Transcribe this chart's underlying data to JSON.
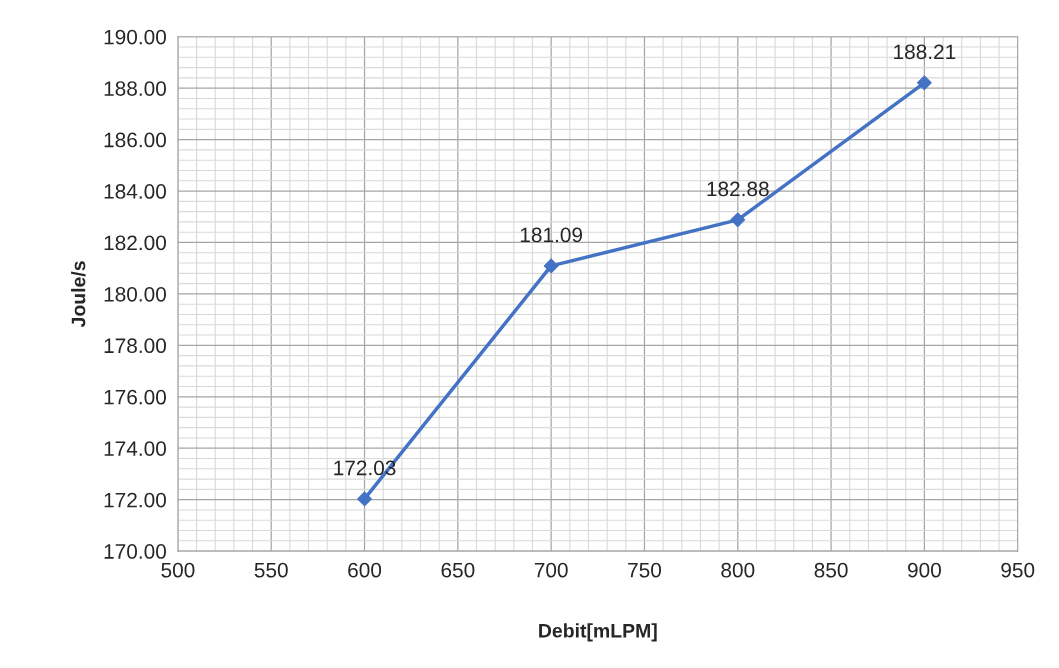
{
  "chart_data": {
    "type": "line",
    "xlabel": "Debit[mLPM]",
    "ylabel": "Joule/s",
    "x": [
      600,
      700,
      800,
      900
    ],
    "series": [
      {
        "color": "#4472c4",
        "values": [
          172.03,
          181.09,
          182.88,
          188.21
        ]
      }
    ],
    "xlim": [
      500,
      950
    ],
    "xticks": [
      500,
      550,
      600,
      650,
      700,
      750,
      800,
      850,
      900,
      950
    ],
    "ylim": [
      170,
      190
    ],
    "yticks": [
      {
        "value": 170,
        "label": "170.00"
      },
      {
        "value": 172,
        "label": "172.00"
      },
      {
        "value": 174,
        "label": "174.00"
      },
      {
        "value": 176,
        "label": "176.00"
      },
      {
        "value": 178,
        "label": "178.00"
      },
      {
        "value": 180,
        "label": "180.00"
      },
      {
        "value": 182,
        "label": "182.00"
      },
      {
        "value": 184,
        "label": "184.00"
      },
      {
        "value": 186,
        "label": "186.00"
      },
      {
        "value": 188,
        "label": "188.00"
      },
      {
        "value": 190,
        "label": "190.00"
      }
    ],
    "grid": true,
    "marker": "diamond",
    "line_style": "solid",
    "data_labels": true,
    "legend": false
  }
}
